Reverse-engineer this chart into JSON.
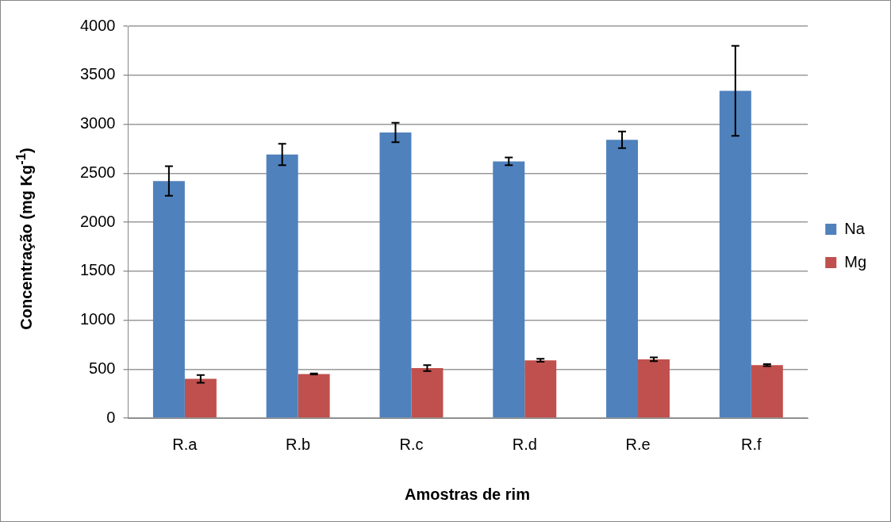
{
  "chart_data": {
    "type": "bar",
    "xlabel": "Amostras de rim",
    "ylabel": "Concentração (mg Kg$^{-1}$)",
    "categories": [
      "R.a",
      "R.b",
      "R.c",
      "R.d",
      "R.e",
      "R.f"
    ],
    "series": [
      {
        "name": "Na",
        "color": "#4f81bd",
        "values": [
          2420,
          2690,
          2915,
          2620,
          2840,
          3340
        ],
        "errors": [
          150,
          110,
          100,
          40,
          85,
          460
        ]
      },
      {
        "name": "Mg",
        "color": "#c0504d",
        "values": [
          400,
          450,
          510,
          590,
          600,
          540
        ],
        "errors": [
          40,
          5,
          30,
          15,
          20,
          10
        ]
      }
    ],
    "ylim": [
      0,
      4000
    ],
    "yticks": [
      0,
      500,
      1000,
      1500,
      2000,
      2500,
      3000,
      3500,
      4000
    ],
    "grid": "y",
    "legend": "right"
  }
}
